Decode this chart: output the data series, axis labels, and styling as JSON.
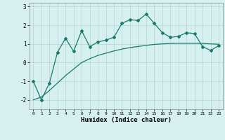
{
  "xlabel": "Humidex (Indice chaleur)",
  "x_values": [
    0,
    1,
    2,
    3,
    4,
    5,
    6,
    7,
    8,
    9,
    10,
    11,
    12,
    13,
    14,
    15,
    16,
    17,
    18,
    19,
    20,
    21,
    22,
    23
  ],
  "line1_y": [
    -1.0,
    -2.0,
    -1.1,
    0.55,
    1.3,
    0.6,
    1.7,
    0.85,
    1.1,
    1.2,
    1.35,
    2.1,
    2.3,
    2.25,
    2.6,
    2.1,
    1.6,
    1.35,
    1.4,
    1.6,
    1.55,
    0.85,
    0.65,
    0.9
  ],
  "line2_y": [
    -2.0,
    -1.85,
    -1.5,
    -1.1,
    -0.7,
    -0.35,
    0.0,
    0.2,
    0.38,
    0.5,
    0.62,
    0.72,
    0.8,
    0.86,
    0.92,
    0.97,
    1.0,
    1.02,
    1.03,
    1.03,
    1.03,
    1.02,
    1.0,
    0.98
  ],
  "line_color": "#1a7a6a",
  "bg_color": "#d6f0f0",
  "grid_color": "#b8d8d8",
  "ylim": [
    -2.5,
    3.2
  ],
  "yticks": [
    -2,
    -1,
    0,
    1,
    2,
    3
  ],
  "xticks": [
    0,
    1,
    2,
    3,
    4,
    5,
    6,
    7,
    8,
    9,
    10,
    11,
    12,
    13,
    14,
    15,
    16,
    17,
    18,
    19,
    20,
    21,
    22,
    23
  ],
  "marker": "D",
  "markersize": 2.0
}
